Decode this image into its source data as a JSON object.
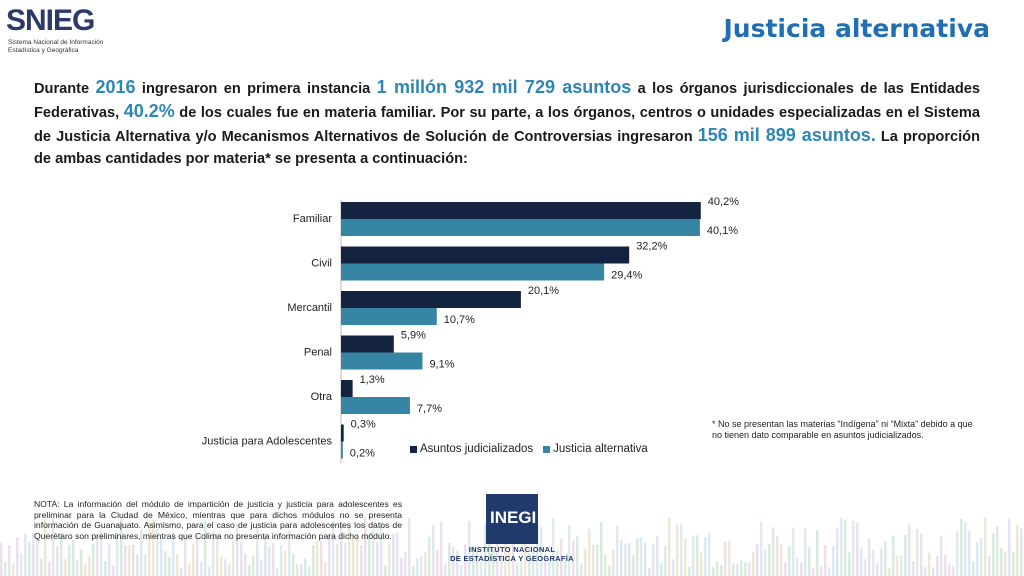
{
  "header": {
    "logo_text": "SNIEG",
    "logo_subtitle": "Sistema Nacional de Información Estadística y Geográfica",
    "title": "Justicia alternativa"
  },
  "intro": {
    "p1": "Durante ",
    "year": "2016",
    "p2": " ingresaron en primera instancia ",
    "total_judicial": "1 millón 932 mil 729 asuntos",
    "p3": " a los órganos jurisdiccionales de las Entidades Federativas, ",
    "pct_familiar": "40.2%",
    "p4": " de los cuales fue en materia familiar. Por su parte, a los órganos, centros o unidades especializadas en el Sistema de Justicia Alternativa y/o Mecanismos Alternativos de Solución de Controversias ingresaron ",
    "total_alternativa": "156 mil 899 asuntos.",
    "p5": " La proporción de ambas cantidades por materia* se presenta a continuación:"
  },
  "chart_data": {
    "type": "bar",
    "orientation": "horizontal",
    "categories": [
      "Familiar",
      "Civil",
      "Mercantil",
      "Penal",
      "Otra",
      "Justicia para Adolescentes"
    ],
    "series": [
      {
        "name": "Asuntos judicializados",
        "values": [
          40.2,
          32.2,
          20.1,
          5.9,
          1.3,
          0.3
        ],
        "labels": [
          "40,2%",
          "32,2%",
          "20,1%",
          "5,9%",
          "1,3%",
          "0,3%"
        ],
        "color": "#14233f"
      },
      {
        "name": "Justicia alternativa",
        "values": [
          40.1,
          29.4,
          10.7,
          9.1,
          7.7,
          0.2
        ],
        "labels": [
          "40,1%",
          "29,4%",
          "10,7%",
          "9,1%",
          "7,7%",
          "0,2%"
        ],
        "color": "#3585a3"
      }
    ],
    "xlim": [
      0,
      45
    ],
    "legend": "bottom",
    "grid": false
  },
  "footnote": "* No se presentan las materias “Indígena” ni “Mixta” debido a que no tienen dato comparable en asuntos judicializados.",
  "nota": "NOTA: La información del módulo de impartición de justicia y justicia para adolescentes es preliminar para la Ciudad de México, mientras que para dichos módulos no se presenta información de Guanajuato. Asimismo, para el caso de justicia para adolescentes los datos de Querétaro son preliminares, mientras que Colima no presenta información para dicho módulo.",
  "inegi": {
    "logo_text": "INEGI",
    "line1": "INSTITUTO NACIONAL",
    "line2": "DE ESTADÍSTICA Y GEOGRAFÍA"
  },
  "colors": {
    "title": "#1f6fb2",
    "highlight": "#2e86b4"
  }
}
